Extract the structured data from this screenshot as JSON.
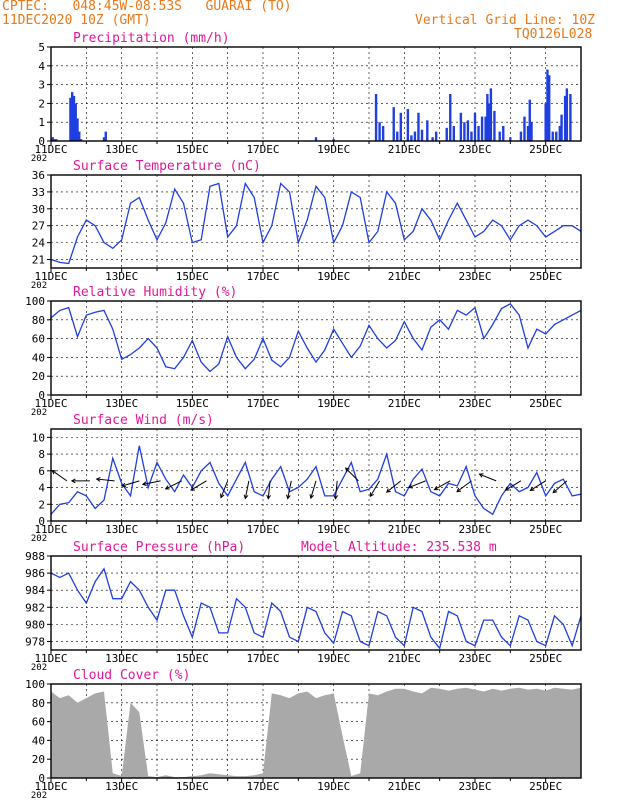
{
  "header": {
    "line1": "CPTEC:   048:45W-08:53S   GUARAI (TO)",
    "line2": "11DEC2020 10Z (GMT)",
    "right1": "Vertical Grid Line: 10Z",
    "right2": "TQ0126L028"
  },
  "colors": {
    "header": "#e8781a",
    "title": "#e0199a",
    "line": "#1f3fe0",
    "bar": "#1f3fe0",
    "cloud": "#a9a9a9"
  },
  "x_ticks": [
    "11DEC",
    "13DEC",
    "15DEC",
    "17DEC",
    "19DEC",
    "21DEC",
    "23DEC",
    "25DEC"
  ],
  "x_axis_prefix": "202",
  "chart_data": [
    {
      "id": "precip",
      "type": "bar",
      "title": "Precipitation (mm/h)",
      "ylim": [
        0,
        5
      ],
      "yticks": [
        0,
        1,
        2,
        3,
        4,
        5
      ],
      "xlim": [
        0,
        15
      ],
      "x": [
        0.05,
        0.1,
        0.15,
        0.55,
        0.6,
        0.65,
        0.7,
        0.75,
        0.8,
        0.85,
        1.5,
        1.55,
        7.5,
        8.0,
        9.2,
        9.3,
        9.4,
        9.7,
        9.8,
        9.9,
        10.1,
        10.2,
        10.3,
        10.4,
        10.5,
        10.65,
        10.8,
        10.9,
        11.2,
        11.3,
        11.4,
        11.6,
        11.7,
        11.8,
        11.9,
        12.0,
        12.1,
        12.2,
        12.3,
        12.35,
        12.4,
        12.45,
        12.55,
        12.7,
        12.8,
        13.0,
        13.3,
        13.4,
        13.5,
        13.55,
        13.6,
        14.0,
        14.05,
        14.1,
        14.2,
        14.3,
        14.4,
        14.45,
        14.55,
        14.6,
        14.7
      ],
      "values": [
        0.2,
        0.1,
        0.1,
        2.3,
        2.6,
        2.4,
        2.0,
        1.2,
        0.5,
        0.1,
        0.2,
        0.5,
        0.2,
        0.1,
        2.5,
        1.0,
        0.8,
        1.8,
        0.5,
        1.5,
        1.7,
        0.3,
        0.5,
        1.5,
        0.6,
        1.1,
        0.2,
        0.5,
        0.7,
        2.5,
        0.8,
        1.5,
        1.0,
        1.1,
        0.5,
        1.5,
        0.8,
        1.3,
        1.3,
        2.5,
        2.0,
        2.8,
        1.6,
        0.5,
        0.8,
        0.2,
        0.5,
        1.3,
        0.8,
        2.2,
        1.0,
        2.0,
        3.8,
        3.5,
        0.5,
        0.5,
        0.8,
        1.4,
        2.4,
        2.8,
        2.5
      ]
    },
    {
      "id": "temp",
      "type": "line",
      "title": "Surface Temperature (nC)",
      "ylim": [
        19.5,
        36
      ],
      "yticks": [
        21,
        24,
        27,
        30,
        33,
        36
      ],
      "xlim": [
        0,
        15
      ],
      "x": [
        0,
        0.25,
        0.5,
        0.75,
        1.0,
        1.25,
        1.5,
        1.75,
        2.0,
        2.25,
        2.5,
        2.75,
        3.0,
        3.25,
        3.5,
        3.75,
        4.0,
        4.25,
        4.5,
        4.75,
        5.0,
        5.25,
        5.5,
        5.75,
        6.0,
        6.25,
        6.5,
        6.75,
        7.0,
        7.25,
        7.5,
        7.75,
        8.0,
        8.25,
        8.5,
        8.75,
        9.0,
        9.25,
        9.5,
        9.75,
        10.0,
        10.25,
        10.5,
        10.75,
        11.0,
        11.25,
        11.5,
        11.75,
        12.0,
        12.25,
        12.5,
        12.75,
        13.0,
        13.25,
        13.5,
        13.75,
        14.0,
        14.25,
        14.5,
        14.75,
        15.0
      ],
      "values": [
        21,
        20.5,
        20.3,
        25,
        28,
        27,
        24,
        23,
        24.5,
        31,
        32,
        28,
        24.5,
        27.5,
        33.5,
        31,
        24,
        24.5,
        34,
        34.5,
        25,
        27,
        34.5,
        32,
        24,
        27,
        34.5,
        33,
        24,
        28,
        34,
        32,
        24,
        27,
        33,
        32,
        24,
        26,
        33,
        31,
        24.5,
        26,
        30,
        28,
        24.5,
        28,
        31,
        28,
        25,
        26,
        28,
        27,
        24.5,
        27,
        28,
        27,
        25,
        26,
        27,
        27,
        26
      ]
    },
    {
      "id": "rh",
      "type": "line",
      "title": "Relative Humidity (%)",
      "ylim": [
        0,
        100
      ],
      "yticks": [
        0,
        20,
        40,
        60,
        80,
        100
      ],
      "xlim": [
        0,
        15
      ],
      "x": [
        0,
        0.25,
        0.5,
        0.75,
        1.0,
        1.25,
        1.5,
        1.75,
        2.0,
        2.25,
        2.5,
        2.75,
        3.0,
        3.25,
        3.5,
        3.75,
        4.0,
        4.25,
        4.5,
        4.75,
        5.0,
        5.25,
        5.5,
        5.75,
        6.0,
        6.25,
        6.5,
        6.75,
        7.0,
        7.25,
        7.5,
        7.75,
        8.0,
        8.25,
        8.5,
        8.75,
        9.0,
        9.25,
        9.5,
        9.75,
        10.0,
        10.25,
        10.5,
        10.75,
        11.0,
        11.25,
        11.5,
        11.75,
        12.0,
        12.25,
        12.5,
        12.75,
        13.0,
        13.25,
        13.5,
        13.75,
        14.0,
        14.25,
        14.5,
        14.75,
        15.0
      ],
      "values": [
        82,
        90,
        93,
        62,
        85,
        88,
        90,
        70,
        38,
        43,
        50,
        60,
        50,
        30,
        28,
        40,
        58,
        35,
        25,
        33,
        62,
        40,
        28,
        38,
        60,
        37,
        30,
        40,
        68,
        50,
        35,
        48,
        70,
        55,
        40,
        52,
        74,
        60,
        50,
        58,
        78,
        60,
        48,
        72,
        80,
        70,
        90,
        85,
        93,
        60,
        75,
        92,
        97,
        85,
        50,
        70,
        65,
        75,
        80,
        85,
        90
      ]
    },
    {
      "id": "wind",
      "type": "line",
      "title": "Surface Wind (m/s)",
      "ylim": [
        0,
        11
      ],
      "yticks": [
        0,
        2,
        4,
        6,
        8,
        10
      ],
      "xlim": [
        0,
        15
      ],
      "x": [
        0,
        0.25,
        0.5,
        0.75,
        1.0,
        1.25,
        1.5,
        1.75,
        2.0,
        2.25,
        2.5,
        2.75,
        3.0,
        3.25,
        3.5,
        3.75,
        4.0,
        4.25,
        4.5,
        4.75,
        5.0,
        5.25,
        5.5,
        5.75,
        6.0,
        6.25,
        6.5,
        6.75,
        7.0,
        7.25,
        7.5,
        7.75,
        8.0,
        8.25,
        8.5,
        8.75,
        9.0,
        9.25,
        9.5,
        9.75,
        10.0,
        10.25,
        10.5,
        10.75,
        11.0,
        11.25,
        11.5,
        11.75,
        12.0,
        12.25,
        12.5,
        12.75,
        13.0,
        13.25,
        13.5,
        13.75,
        14.0,
        14.25,
        14.5,
        14.75,
        15.0
      ],
      "values": [
        0.8,
        2,
        2.2,
        3.5,
        3,
        1.5,
        2.5,
        7.5,
        4.5,
        3,
        9,
        4,
        7,
        5,
        3.5,
        5.5,
        4,
        6,
        7,
        4.5,
        3,
        5,
        7,
        3.5,
        3,
        5,
        6.5,
        3.5,
        4,
        5,
        6.5,
        3,
        3,
        5,
        7,
        3.5,
        3.8,
        5,
        8,
        3.5,
        3,
        5,
        6.2,
        3.5,
        3,
        4.5,
        4.2,
        6.5,
        3,
        1.5,
        0.8,
        3,
        4.5,
        3.5,
        4,
        5.8,
        3,
        4.5,
        5,
        3,
        3.2
      ],
      "vectors": [
        {
          "x": 0.45,
          "u": -1,
          "v": 0.7
        },
        {
          "x": 1.1,
          "u": -1,
          "v": 0
        },
        {
          "x": 1.8,
          "u": -1,
          "v": 0.1
        },
        {
          "x": 2.5,
          "u": -1,
          "v": -0.3
        },
        {
          "x": 3.1,
          "u": -1,
          "v": -0.2
        },
        {
          "x": 3.7,
          "u": -1,
          "v": -0.5
        },
        {
          "x": 4.4,
          "u": -1,
          "v": -0.6
        },
        {
          "x": 5.0,
          "u": -0.4,
          "v": -1
        },
        {
          "x": 5.6,
          "u": -0.2,
          "v": -1
        },
        {
          "x": 6.2,
          "u": -0.1,
          "v": -1
        },
        {
          "x": 6.8,
          "u": -0.2,
          "v": -1
        },
        {
          "x": 7.5,
          "u": -0.3,
          "v": -1
        },
        {
          "x": 8.1,
          "u": -0.1,
          "v": -1
        },
        {
          "x": 8.7,
          "u": -0.3,
          "v": 0.3
        },
        {
          "x": 9.3,
          "u": -0.6,
          "v": -1
        },
        {
          "x": 9.9,
          "u": -1,
          "v": -0.8
        },
        {
          "x": 10.6,
          "u": -1,
          "v": -0.4
        },
        {
          "x": 11.3,
          "u": -0.9,
          "v": -0.5
        },
        {
          "x": 11.9,
          "u": -0.8,
          "v": -0.6
        },
        {
          "x": 12.6,
          "u": -0.5,
          "v": 0.2
        },
        {
          "x": 13.3,
          "u": -1,
          "v": -0.6
        },
        {
          "x": 14.0,
          "u": -0.8,
          "v": -0.5
        },
        {
          "x": 14.6,
          "u": -0.7,
          "v": -0.6
        }
      ]
    },
    {
      "id": "pres",
      "type": "line",
      "title": "Surface Pressure (hPa)",
      "annotation": "Model Altitude: 235.538  m",
      "ylim": [
        977,
        988
      ],
      "yticks": [
        978,
        980,
        982,
        984,
        986,
        988
      ],
      "xlim": [
        0,
        15
      ],
      "x": [
        0,
        0.25,
        0.5,
        0.75,
        1.0,
        1.25,
        1.5,
        1.75,
        2.0,
        2.25,
        2.5,
        2.75,
        3.0,
        3.25,
        3.5,
        3.75,
        4.0,
        4.25,
        4.5,
        4.75,
        5.0,
        5.25,
        5.5,
        5.75,
        6.0,
        6.25,
        6.5,
        6.75,
        7.0,
        7.25,
        7.5,
        7.75,
        8.0,
        8.25,
        8.5,
        8.75,
        9.0,
        9.25,
        9.5,
        9.75,
        10.0,
        10.25,
        10.5,
        10.75,
        11.0,
        11.25,
        11.5,
        11.75,
        12.0,
        12.25,
        12.5,
        12.75,
        13.0,
        13.25,
        13.5,
        13.75,
        14.0,
        14.25,
        14.5,
        14.75,
        15.0
      ],
      "values": [
        986,
        985.5,
        986,
        984,
        982.5,
        985,
        986.5,
        983,
        983,
        985,
        984,
        982,
        980.5,
        984,
        984,
        981,
        978.5,
        982.5,
        982,
        979,
        979,
        983,
        982,
        979,
        978.5,
        982.5,
        981.5,
        978.5,
        978,
        982,
        981.5,
        979,
        977.8,
        981.5,
        981,
        978,
        977.5,
        981.5,
        981,
        978.5,
        977.5,
        982,
        981.5,
        978.5,
        977.2,
        981.5,
        981,
        978,
        977.5,
        980.5,
        980.5,
        978.5,
        977.5,
        981,
        980.5,
        978,
        977.5,
        981,
        980,
        977.5,
        981
      ]
    },
    {
      "id": "cloud",
      "type": "area",
      "title": "Cloud Cover (%)",
      "ylim": [
        0,
        100
      ],
      "yticks": [
        0,
        20,
        40,
        60,
        80,
        100
      ],
      "xlim": [
        0,
        15
      ],
      "x": [
        0,
        0.25,
        0.5,
        0.75,
        1.0,
        1.25,
        1.5,
        1.75,
        2.0,
        2.25,
        2.5,
        2.75,
        3.0,
        3.25,
        3.5,
        3.75,
        4.0,
        4.25,
        4.5,
        4.75,
        5.0,
        5.25,
        5.5,
        5.75,
        6.0,
        6.25,
        6.5,
        6.75,
        7.0,
        7.25,
        7.5,
        7.75,
        8.0,
        8.25,
        8.5,
        8.75,
        9.0,
        9.25,
        9.5,
        9.75,
        10.0,
        10.25,
        10.5,
        10.75,
        11.0,
        11.25,
        11.5,
        11.75,
        12.0,
        12.25,
        12.5,
        12.75,
        13.0,
        13.25,
        13.5,
        13.75,
        14.0,
        14.25,
        14.5,
        14.75,
        15.0
      ],
      "values": [
        92,
        85,
        88,
        80,
        85,
        90,
        92,
        5,
        2,
        80,
        70,
        2,
        1,
        3,
        1,
        1,
        2,
        3,
        5,
        4,
        3,
        2,
        2,
        3,
        5,
        90,
        88,
        85,
        90,
        92,
        85,
        88,
        90,
        45,
        2,
        5,
        90,
        88,
        92,
        95,
        95,
        92,
        90,
        96,
        95,
        93,
        95,
        96,
        94,
        92,
        95,
        93,
        95,
        96,
        94,
        95,
        93,
        96,
        95,
        94,
        96
      ]
    }
  ]
}
